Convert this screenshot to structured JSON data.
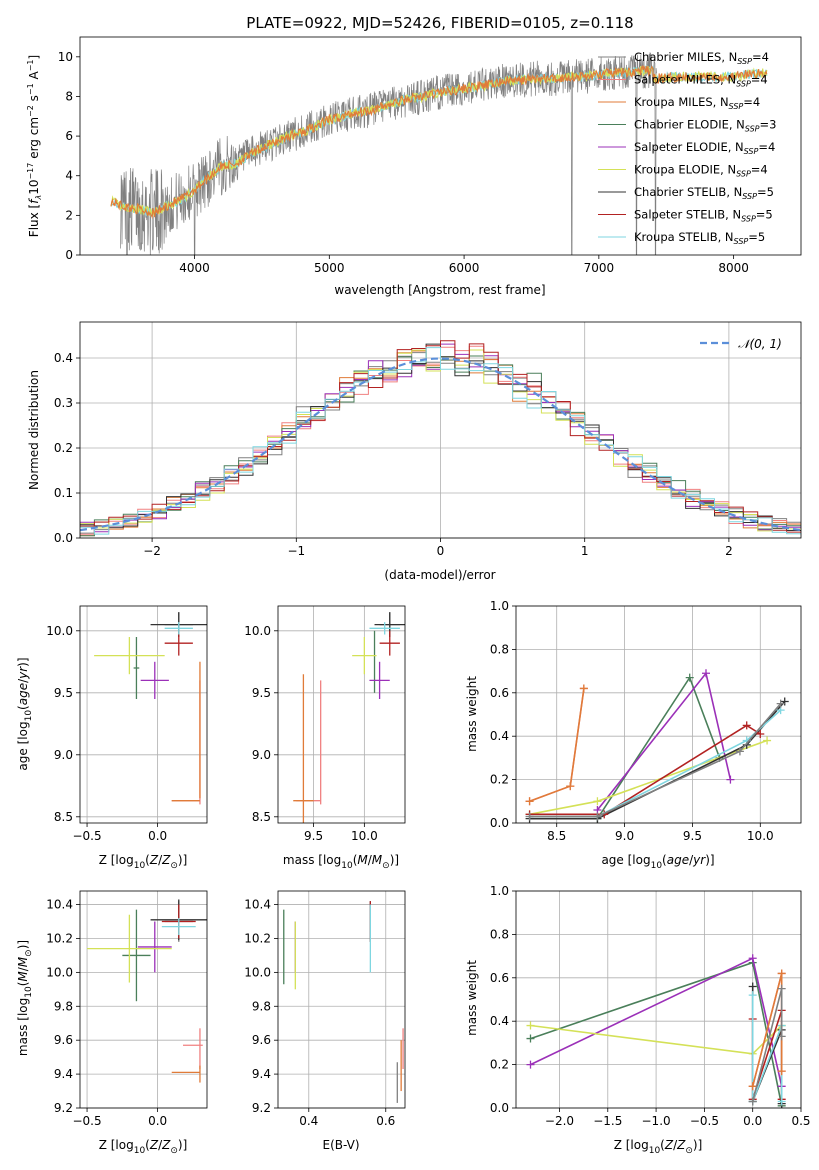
{
  "figure_title": "PLATE=0922, MJD=52426, FIBERID=0105, z=0.118",
  "colors": {
    "chabrier_miles": "#808080",
    "salpeter_miles": "#f08080",
    "kroupa_miles": "#e07b39",
    "chabrier_elodie": "#4a7f5a",
    "salpeter_elodie": "#9b30b8",
    "kroupa_elodie": "#d4e157",
    "chabrier_stelib": "#333333",
    "salpeter_stelib": "#b22222",
    "kroupa_stelib": "#7fd6e0",
    "normal_curve": "#5b8fd9",
    "grid": "#b0b0b0"
  },
  "chart_data": [
    {
      "id": "spectrum",
      "type": "line",
      "title": "PLATE=0922, MJD=52426, FIBERID=0105, z=0.118",
      "xlabel": "wavelength [Angstrom, rest frame]",
      "ylabel_parts": [
        "Flux [f",
        "λ",
        "10",
        "−17",
        " erg cm",
        "−2",
        " s",
        "−1",
        " A",
        "−1",
        "]"
      ],
      "xlim": [
        3150,
        8500
      ],
      "ylim": [
        0,
        11
      ],
      "xticks": [
        4000,
        5000,
        6000,
        7000,
        8000
      ],
      "yticks": [
        0,
        2,
        4,
        6,
        8,
        10
      ],
      "grid": false,
      "legend_position": "right",
      "legend": [
        {
          "name": "Chabrier MILES, N",
          "sub": "SSP",
          "tail": "=4",
          "color_key": "chabrier_miles"
        },
        {
          "name": "Salpeter MILES, N",
          "sub": "SSP",
          "tail": "=4",
          "color_key": "salpeter_miles"
        },
        {
          "name": "Kroupa MILES, N",
          "sub": "SSP",
          "tail": "=4",
          "color_key": "kroupa_miles"
        },
        {
          "name": "Chabrier ELODIE, N",
          "sub": "SSP",
          "tail": "=3",
          "color_key": "chabrier_elodie"
        },
        {
          "name": "Salpeter ELODIE, N",
          "sub": "SSP",
          "tail": "=4",
          "color_key": "salpeter_elodie"
        },
        {
          "name": "Kroupa ELODIE, N",
          "sub": "SSP",
          "tail": "=4",
          "color_key": "kroupa_elodie"
        },
        {
          "name": "Chabrier STELIB, N",
          "sub": "SSP",
          "tail": "=5",
          "color_key": "chabrier_stelib"
        },
        {
          "name": "Salpeter STELIB, N",
          "sub": "SSP",
          "tail": "=5",
          "color_key": "salpeter_stelib"
        },
        {
          "name": "Kroupa STELIB, N",
          "sub": "SSP",
          "tail": "=5",
          "color_key": "kroupa_stelib"
        }
      ],
      "continuum": [
        [
          3380,
          2.7
        ],
        [
          3500,
          2.4
        ],
        [
          3600,
          2.3
        ],
        [
          3700,
          2.1
        ],
        [
          3800,
          2.5
        ],
        [
          3900,
          2.8
        ],
        [
          4000,
          3.3
        ],
        [
          4100,
          3.9
        ],
        [
          4200,
          4.5
        ],
        [
          4300,
          4.6
        ],
        [
          4400,
          5.0
        ],
        [
          4500,
          5.4
        ],
        [
          4600,
          5.7
        ],
        [
          4700,
          6.0
        ],
        [
          4800,
          6.2
        ],
        [
          4900,
          6.5
        ],
        [
          5000,
          6.8
        ],
        [
          5100,
          7.0
        ],
        [
          5200,
          7.2
        ],
        [
          5300,
          7.3
        ],
        [
          5400,
          7.5
        ],
        [
          5500,
          7.7
        ],
        [
          5600,
          7.9
        ],
        [
          5700,
          8.0
        ],
        [
          5800,
          8.2
        ],
        [
          5900,
          8.3
        ],
        [
          6000,
          8.4
        ],
        [
          6100,
          8.5
        ],
        [
          6200,
          8.6
        ],
        [
          6300,
          8.8
        ],
        [
          6400,
          8.8
        ],
        [
          6500,
          8.9
        ],
        [
          6600,
          8.9
        ],
        [
          6700,
          8.9
        ],
        [
          6800,
          9.0
        ],
        [
          6900,
          9.0
        ],
        [
          7000,
          9.1
        ],
        [
          7100,
          9.2
        ],
        [
          7200,
          9.2
        ],
        [
          7300,
          9.3
        ],
        [
          7400,
          9.3
        ]
      ],
      "model_continuum": [
        [
          7400,
          8.9
        ],
        [
          7600,
          9.0
        ],
        [
          7800,
          9.0
        ],
        [
          8000,
          9.0
        ],
        [
          8100,
          9.1
        ],
        [
          8250,
          9.2
        ]
      ],
      "noisy_start": 3450,
      "noisy_end": 7430,
      "dropouts": [
        3500,
        4000,
        6800,
        7280,
        7420
      ]
    },
    {
      "id": "residuals",
      "type": "histogram",
      "xlabel": "(data-model)/error",
      "ylabel": "Normed distribution",
      "xlim": [
        -2.5,
        2.5
      ],
      "ylim": [
        0,
        0.48
      ],
      "xticks": [
        -2,
        -1,
        0,
        1,
        2
      ],
      "yticks": [
        0.0,
        0.1,
        0.2,
        0.3,
        0.4
      ],
      "grid": true,
      "legend_position": "top-right",
      "legend_label": "𝒩(0, 1)",
      "bin_width": 0.1
    },
    {
      "id": "age_vs_z",
      "type": "errorbar",
      "xlabel_main": "Z [log",
      "xlabel_sub": "10",
      "xlabel_tail": "(Z/Z",
      "xlabel_end": ")]",
      "ylabel": "age  [log10(age/yr)]",
      "xlim": [
        -0.55,
        0.35
      ],
      "ylim": [
        8.45,
        10.2
      ],
      "xticks": [
        -0.5,
        0.0
      ],
      "yticks": [
        8.5,
        9.0,
        9.5,
        10.0
      ],
      "grid": true,
      "points": [
        {
          "color_key": "chabrier_miles",
          "x": 0.15,
          "xerr": 0.1,
          "y": 10.05,
          "yerr": 0.1
        },
        {
          "color_key": "salpeter_miles",
          "x": 0.3,
          "xerr": 0.0,
          "y": 9.1,
          "yerr": 0.5
        },
        {
          "color_key": "kroupa_miles",
          "x": 0.3,
          "xerr": 0.0,
          "y": 9.2,
          "yerr": 0.55
        },
        {
          "color_key": "chabrier_elodie",
          "x": -0.15,
          "xerr": 0.02,
          "y": 9.7,
          "yerr": 0.25
        },
        {
          "color_key": "salpeter_elodie",
          "x": -0.02,
          "xerr": 0.1,
          "y": 9.6,
          "yerr": 0.15
        },
        {
          "color_key": "kroupa_elodie",
          "x": -0.2,
          "xerr": 0.25,
          "y": 9.8,
          "yerr": 0.15
        },
        {
          "color_key": "chabrier_stelib",
          "x": 0.15,
          "xerr": 0.2,
          "y": 10.05,
          "yerr": 0.1
        },
        {
          "color_key": "salpeter_stelib",
          "x": 0.15,
          "xerr": 0.1,
          "y": 9.9,
          "yerr": 0.1
        },
        {
          "color_key": "kroupa_stelib",
          "x": 0.15,
          "xerr": 0.1,
          "y": 10.02,
          "yerr": 0.05
        },
        {
          "color_key": "salpeter_miles",
          "x": 0.2,
          "xerr": 0.1,
          "y": 8.63,
          "yerr": 0.0
        },
        {
          "color_key": "kroupa_miles",
          "x": 0.2,
          "xerr": 0.1,
          "y": 8.63,
          "yerr": 0.0
        }
      ]
    },
    {
      "id": "age_vs_mass",
      "type": "errorbar",
      "xlabel": "mass [log10(M/M⊙)]",
      "ylabel": "",
      "xlim": [
        9.15,
        10.4
      ],
      "ylim": [
        8.45,
        10.2
      ],
      "xticks": [
        9.5,
        10.0
      ],
      "yticks": [
        8.5,
        9.0,
        9.5,
        10.0
      ],
      "grid": true,
      "points": [
        {
          "color_key": "chabrier_miles",
          "x": 10.25,
          "xerr": 0.1,
          "y": 10.05,
          "yerr": 0.1
        },
        {
          "color_key": "salpeter_miles",
          "x": 9.57,
          "xerr": 0.0,
          "y": 9.1,
          "yerr": 0.5
        },
        {
          "color_key": "kroupa_miles",
          "x": 9.4,
          "xerr": 0.0,
          "y": 9.05,
          "yerr": 0.6
        },
        {
          "color_key": "chabrier_elodie",
          "x": 10.1,
          "xerr": 0.0,
          "y": 9.75,
          "yerr": 0.25
        },
        {
          "color_key": "salpeter_elodie",
          "x": 10.15,
          "xerr": 0.1,
          "y": 9.6,
          "yerr": 0.15
        },
        {
          "color_key": "kroupa_elodie",
          "x": 10.0,
          "xerr": 0.12,
          "y": 9.8,
          "yerr": 0.15
        },
        {
          "color_key": "chabrier_stelib",
          "x": 10.25,
          "xerr": 0.15,
          "y": 10.05,
          "yerr": 0.1
        },
        {
          "color_key": "salpeter_stelib",
          "x": 10.25,
          "xerr": 0.1,
          "y": 9.9,
          "yerr": 0.1
        },
        {
          "color_key": "kroupa_stelib",
          "x": 10.2,
          "xerr": 0.15,
          "y": 10.02,
          "yerr": 0.05
        },
        {
          "color_key": "salpeter_miles",
          "x": 9.45,
          "xerr": 0.12,
          "y": 8.63,
          "yerr": 0.0
        },
        {
          "color_key": "kroupa_miles",
          "x": 9.4,
          "xerr": 0.1,
          "y": 8.63,
          "yerr": 0.0
        }
      ]
    },
    {
      "id": "weight_vs_age",
      "type": "line",
      "xlabel": "age  [log10(age/yr)]",
      "ylabel": "mass weight",
      "xlim": [
        8.2,
        10.3
      ],
      "ylim": [
        0.0,
        1.0
      ],
      "xticks": [
        8.5,
        9.0,
        9.5,
        10.0
      ],
      "yticks": [
        0.0,
        0.2,
        0.4,
        0.6,
        0.8,
        1.0
      ],
      "grid": true,
      "series": [
        {
          "color_key": "salpeter_miles",
          "x": [
            8.3,
            8.6,
            8.7
          ],
          "y": [
            0.1,
            0.17,
            0.62
          ]
        },
        {
          "color_key": "kroupa_miles",
          "x": [
            8.3,
            8.6,
            8.7
          ],
          "y": [
            0.1,
            0.17,
            0.62
          ]
        },
        {
          "color_key": "chabrier_elodie",
          "x": [
            8.8,
            9.48,
            9.7
          ],
          "y": [
            0.02,
            0.67,
            0.3
          ]
        },
        {
          "color_key": "salpeter_elodie",
          "x": [
            8.8,
            9.6,
            9.78
          ],
          "y": [
            0.06,
            0.69,
            0.2
          ]
        },
        {
          "color_key": "kroupa_elodie",
          "x": [
            8.3,
            8.8,
            10.05
          ],
          "y": [
            0.04,
            0.1,
            0.38
          ]
        },
        {
          "color_key": "chabrier_stelib",
          "x": [
            8.3,
            8.8,
            9.9,
            10.18
          ],
          "y": [
            0.02,
            0.02,
            0.36,
            0.56
          ]
        },
        {
          "color_key": "salpeter_stelib",
          "x": [
            8.3,
            8.85,
            9.9,
            10.0
          ],
          "y": [
            0.04,
            0.04,
            0.45,
            0.41
          ]
        },
        {
          "color_key": "kroupa_stelib",
          "x": [
            8.3,
            8.8,
            9.9,
            10.15
          ],
          "y": [
            0.03,
            0.03,
            0.38,
            0.52
          ]
        },
        {
          "color_key": "chabrier_miles",
          "x": [
            8.3,
            8.8,
            9.85,
            10.15
          ],
          "y": [
            0.03,
            0.03,
            0.33,
            0.55
          ]
        }
      ]
    },
    {
      "id": "mass_vs_z",
      "type": "errorbar",
      "xlabel": "Z [log10(Z/Z⊙)]",
      "ylabel": "mass [log10(M/M⊙)]",
      "xlim": [
        -0.55,
        0.35
      ],
      "ylim": [
        9.2,
        10.48
      ],
      "xticks": [
        -0.5,
        0.0
      ],
      "yticks": [
        9.2,
        9.4,
        9.6,
        9.8,
        10.0,
        10.2,
        10.4
      ],
      "grid": true,
      "points": [
        {
          "color_key": "chabrier_miles",
          "x": 0.15,
          "xerr": 0.1,
          "y": 10.3,
          "yerr": 0.12
        },
        {
          "color_key": "salpeter_miles",
          "x": 0.3,
          "xerr": 0.0,
          "y": 9.55,
          "yerr": 0.12
        },
        {
          "color_key": "kroupa_miles",
          "x": 0.3,
          "xerr": 0.0,
          "y": 9.4,
          "yerr": 0.05
        },
        {
          "color_key": "chabrier_elodie",
          "x": -0.15,
          "xerr": 0.1,
          "y": 10.1,
          "yerr": 0.27
        },
        {
          "color_key": "salpeter_elodie",
          "x": -0.02,
          "xerr": 0.12,
          "y": 10.15,
          "yerr": 0.15
        },
        {
          "color_key": "kroupa_elodie",
          "x": -0.2,
          "xerr": 0.3,
          "y": 10.14,
          "yerr": 0.2
        },
        {
          "color_key": "chabrier_stelib",
          "x": 0.15,
          "xerr": 0.2,
          "y": 10.31,
          "yerr": 0.12
        },
        {
          "color_key": "salpeter_stelib",
          "x": 0.15,
          "xerr": 0.12,
          "y": 10.3,
          "yerr": 0.1
        },
        {
          "color_key": "kroupa_stelib",
          "x": 0.15,
          "xerr": 0.12,
          "y": 10.27,
          "yerr": 0.05
        },
        {
          "color_key": "salpeter_miles",
          "x": 0.25,
          "xerr": 0.07,
          "y": 9.57,
          "yerr": 0.0
        },
        {
          "color_key": "kroupa_miles",
          "x": 0.2,
          "xerr": 0.1,
          "y": 9.41,
          "yerr": 0.0
        }
      ]
    },
    {
      "id": "mass_vs_ebv",
      "type": "errorbar",
      "xlabel": "E(B-V)",
      "ylabel": "",
      "xlim": [
        0.32,
        0.65
      ],
      "ylim": [
        9.2,
        10.48
      ],
      "xticks": [
        0.4,
        0.6
      ],
      "yticks": [
        9.2,
        9.4,
        9.6,
        9.8,
        10.0,
        10.2,
        10.4
      ],
      "grid": true,
      "points": [
        {
          "color_key": "chabrier_elodie",
          "x": 0.335,
          "xerr": 0.0,
          "y": 10.15,
          "yerr": 0.22
        },
        {
          "color_key": "salpeter_elodie",
          "x": 0.365,
          "xerr": 0.0,
          "y": 10.15,
          "yerr": 0.15
        },
        {
          "color_key": "kroupa_elodie",
          "x": 0.365,
          "xerr": 0.0,
          "y": 10.1,
          "yerr": 0.2
        },
        {
          "color_key": "chabrier_stelib",
          "x": 0.56,
          "xerr": 0.0,
          "y": 10.3,
          "yerr": 0.12
        },
        {
          "color_key": "salpeter_stelib",
          "x": 0.56,
          "xerr": 0.0,
          "y": 10.3,
          "yerr": 0.12
        },
        {
          "color_key": "kroupa_stelib",
          "x": 0.56,
          "xerr": 0.0,
          "y": 10.2,
          "yerr": 0.2
        },
        {
          "color_key": "salpeter_miles",
          "x": 0.645,
          "xerr": 0.0,
          "y": 9.55,
          "yerr": 0.12
        },
        {
          "color_key": "kroupa_miles",
          "x": 0.64,
          "xerr": 0.0,
          "y": 9.45,
          "yerr": 0.15
        },
        {
          "color_key": "chabrier_miles",
          "x": 0.63,
          "xerr": 0.0,
          "y": 9.35,
          "yerr": 0.12
        }
      ]
    },
    {
      "id": "weight_vs_z",
      "type": "line",
      "xlabel": "Z [log10(Z/Z⊙)]",
      "ylabel": "mass weight",
      "xlim": [
        -2.45,
        0.5
      ],
      "ylim": [
        0.0,
        1.0
      ],
      "xticks": [
        -2.0,
        -1.5,
        -1.0,
        -0.5,
        0.0,
        0.5
      ],
      "yticks": [
        0.0,
        0.2,
        0.4,
        0.6,
        0.8,
        1.0
      ],
      "grid": true,
      "series": [
        {
          "color_key": "chabrier_elodie",
          "x": [
            -2.3,
            0.0,
            0.3
          ],
          "y": [
            0.32,
            0.67,
            0.01
          ]
        },
        {
          "color_key": "salpeter_elodie",
          "x": [
            -2.3,
            0.0,
            0.3
          ],
          "y": [
            0.2,
            0.69,
            0.1
          ]
        },
        {
          "color_key": "kroupa_elodie",
          "x": [
            -2.3,
            0.0,
            0.3
          ],
          "y": [
            0.38,
            0.25,
            0.38
          ]
        },
        {
          "color_key": "chabrier_stelib",
          "x": [
            0.0,
            0.0,
            0.3,
            0.3
          ],
          "y": [
            0.56,
            0.03,
            0.36,
            0.02
          ]
        },
        {
          "color_key": "salpeter_stelib",
          "x": [
            0.0,
            0.0,
            0.3,
            0.3
          ],
          "y": [
            0.41,
            0.04,
            0.45,
            0.04
          ]
        },
        {
          "color_key": "kroupa_stelib",
          "x": [
            0.0,
            0.0,
            0.3,
            0.3
          ],
          "y": [
            0.52,
            0.03,
            0.38,
            0.03
          ]
        },
        {
          "color_key": "salpeter_miles",
          "x": [
            0.0,
            0.3,
            0.3
          ],
          "y": [
            0.1,
            0.62,
            0.17
          ]
        },
        {
          "color_key": "kroupa_miles",
          "x": [
            0.0,
            0.3,
            0.3
          ],
          "y": [
            0.1,
            0.62,
            0.17
          ]
        },
        {
          "color_key": "chabrier_miles",
          "x": [
            0.0,
            0.3,
            0.3
          ],
          "y": [
            0.03,
            0.55,
            0.33
          ]
        }
      ]
    }
  ]
}
